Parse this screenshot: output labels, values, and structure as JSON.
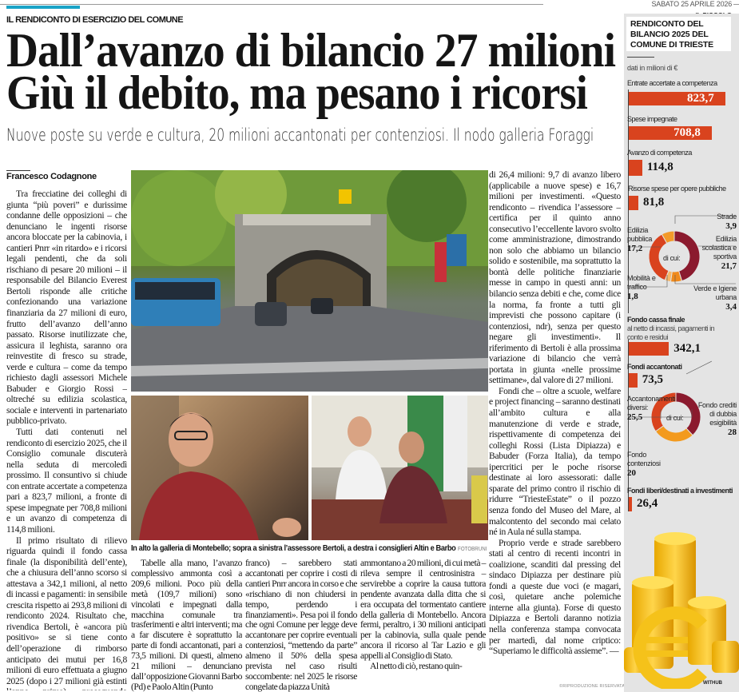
{
  "header": {
    "date": "SABATO 25 APRILE 2026",
    "newspaper": "IL PICCOLO",
    "accent_color": "#1aa3c7"
  },
  "article": {
    "kicker": "IL RENDICONTO DI ESERCIZIO DEL COMUNE",
    "headline_1": "Dall’avanzo di bilancio 27 milioni",
    "headline_2": "Giù il debito, ma pesano i ricorsi",
    "subtitle": "Nuove poste su verde e cultura, 20 milioni accantonati per contenziosi. Il nodo galleria Foraggi",
    "byline": "Francesco Codagnone",
    "caption": "In alto la galleria di Montebello; sopra a sinistra l’assessore Bertoli, a destra i consiglieri Altin e Barbo",
    "photo_credit": "FOTOBRUNI",
    "rights": "©RIPRODUZIONE RISERVATA",
    "cols": {
      "c1": [
        "Tra frecciatine dei colleghi di giunta “più poveri” e durissime condanne delle opposizioni – che denunciano le ingenti risorse ancora bloccate per la cabinovia, i cantieri Pnrr «in ritardo» e i ricorsi legali pendenti, che da soli rischiano di pesare 20 milioni – il responsabile del Bilancio Everest Bertoli risponde alle critiche confezionando una variazione finanziaria da 27 milioni di euro, frutto dell’avanzo dell’anno passato. Risorse inutilizzate che, assicura il leghista, saranno ora reinvestite di fresco su strade, verde e cultura – come da tempo richiesto dagli assessori Michele Babuder e Giorgio Rossi – oltreché su edilizia scolastica, sociale e interventi in partenariato pubblico-privato.",
        "Tutti dati contenuti nel rendiconto di esercizio 2025, che il Consiglio comunale discuterà nella seduta di mercoledì prossimo. Il consuntivo si chiude con entrate accertate a competenza pari a 823,7 milioni, a fronte di spese impegnate per 708,8 milioni e un avanzo di competenza di 114,8 milioni.",
        "Il primo risultato di rilievo riguarda quindi il fondo cassa finale (la disponibilità dell’ente), che a chiusura dell’anno scorso si attestava a 342,1 milioni, al netto di incassi e pagamenti: in sensibile crescita rispetto ai 293,8 milioni di rendiconto 2024. Risultato che, rivendica Bertoli, è «ancora più positivo» se si tiene conto dell’operazione di rimborso anticipato dei mutui per 16,8 milioni di euro effettuata a giugno 2025 (dopo i 27 milioni già estinti l’anno prima), proseguendo l’azione di abbattimento del debito pubblico."
      ],
      "c2a": [
        "Tabelle alla mano, l’avanzo complessivo ammonta così a 209,6 milioni. Poco più della metà (109,7 milioni) sono vincolati e impegnati dalla macchina comunale tra trasferimenti e altri interventi; ma a far discutere è soprattutto la parte di fondi accantonati, pari a 73,5 milioni. Di questi, almeno 21 milioni – denunciano dall’opposizione Giovanni Barbo (Pd) e Paolo Altin (Punto"
      ],
      "c2b": [
        "franco) – sarebbero stati accantonati per coprire i costi di cantieri Pnrr ancora in corso e che «rischiano di non chiudersi in tempo, perdendo i finanziamenti». Pesa poi il fondo che ogni Comune per legge deve accantonare per coprire eventuali contenziosi, “mettendo da parte” almeno il 50% della spesa prevista nel caso risulti soccombente: nel 2025 le risorse congelate da piazza Unità"
      ],
      "c2c": [
        "ammontano a 20 milioni, di cui metà – rileva sempre il centrosinistra – servirebbe a coprire la causa tuttora pendente avanzata dalla ditta che si era occupata del tormentato cantiere della galleria di Montebello. Ancora fermi, peraltro, i 30 milioni anticipati per la cabinovia, sulla quale pende ancora il ricorso al Tar Lazio e gli appelli al Consiglio di Stato.",
        "Al netto di ciò, restano quin-"
      ],
      "c3": [
        "di 26,4 milioni: 9,7 di avanzo libero (applicabile a nuove spese) e 16,7 milioni per investimenti. «Questo rendiconto – rivendica l’assessore – certifica per il quinto anno consecutivo l’eccellente lavoro svolto come amministrazione, dimostrando non solo che abbiamo un bilancio solido e sostenibile, ma soprattutto la bontà delle politiche finanziarie messe in campo in questi anni: un bilancio senza debiti e che, come dice la norma, fa fronte a tutti gli imprevisti che possono capitare (i contenziosi, ndr), senza per questo negare gli investimenti». Il riferimento di Bertoli è alla prossima variazione di bilancio che verrà portata in giunta «nelle prossime settimane», dal valore di 27 milioni.",
        "Fondi che – oltre a scuole, welfare e project financing – saranno destinati all’ambito cultura e alla manutenzione di verde e strade, rispettivamente di competenza dei colleghi Rossi (Lista Dipiazza) e Babuder (Forza Italia), da tempo ipercritici per le poche risorse destinate ai loro assessorati: dalle sparate del primo contro il rischio di ridurre “TriesteEstate” o il pozzo senza fondo del Museo del Mare, al malcontento del secondo mai celato né in Aula né sulla stampa.",
        "Proprio verde e strade sarebbero stati al centro di recenti incontri in coalizione, scanditi dal pressing del sindaco Dipiazza per destinare più fondi a queste due voci (e magari, così, quietare anche polemiche interne alla giunta). Forse di questo Dipiazza e Bertoli daranno notizia nella conferenza stampa convocata per martedì, dal nome criptico: “Superiamo le difficoltà assieme”. —"
      ]
    }
  },
  "infographic": {
    "title": "RENDICONTO DEL BILANCIO 2025 DEL COMUNE DI TRIESTE",
    "unit": "dati in milioni di €",
    "bar_color": "#d9431e",
    "bars": [
      {
        "label": "Entrate accertate a competenza",
        "value": 823.7,
        "display": "823,7"
      },
      {
        "label": "Spese impegnate",
        "value": 708.8,
        "display": "708,8"
      },
      {
        "label": "Avanzo di competenza",
        "value": 114.8,
        "display": "114,8"
      },
      {
        "label": "Risorse spese per opere pubbliche",
        "value": 81.8,
        "display": "81,8"
      },
      {
        "label": "Fondo cassa finale",
        "sublabel": "al netto di incassi, pagamenti in conto e residui",
        "value": 342.1,
        "display": "342,1"
      },
      {
        "label": "Fondi accantonati",
        "value": 73.5,
        "display": "73,5"
      },
      {
        "label": "Fondi liberi/destinati a investimenti",
        "value": 26.4,
        "display": "26,4"
      }
    ],
    "donut_center_label": "di cui:",
    "donut_opere": [
      {
        "label": "Edilizia scolastica e sportiva",
        "value": 21.7,
        "display": "21,7",
        "color": "#8b1a2e"
      },
      {
        "label": "Verde e Igiene urbana",
        "value": 3.4,
        "display": "3,4",
        "color": "#f08a1c"
      },
      {
        "label": "Mobilità e traffico",
        "value": 1.8,
        "display": "1,8",
        "color": "#f6b86a"
      },
      {
        "label": "Edilizia pubblica",
        "value": 17.2,
        "display": "17,2",
        "color": "#d9431e"
      },
      {
        "label": "Strade",
        "value": 3.9,
        "display": "3,9",
        "color": "#f39a2a"
      }
    ],
    "donut_accantonati": [
      {
        "label": "Fondo crediti di dubbia esigibilità",
        "value": 28,
        "display": "28",
        "color": "#8b1a2e"
      },
      {
        "label": "Fondo contenziosi",
        "value": 20,
        "display": "20",
        "color": "#f39a1e"
      },
      {
        "label": "Accantonamenti diversi:",
        "value": 25.5,
        "display": "25,5",
        "color": "#d9431e"
      }
    ],
    "illustration_credit": "WITHUB"
  }
}
